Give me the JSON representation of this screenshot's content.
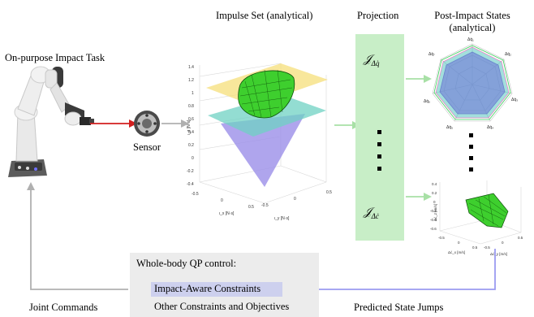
{
  "labels": {
    "task": "On-purpose Impact Task",
    "sensor": "Sensor",
    "impulse_set": "Impulse Set (analytical)",
    "projection": "Projection",
    "post_impact_line1": "Post-Impact States",
    "post_impact_line2": "(analytical)",
    "joint_commands": "Joint Commands",
    "predicted_state_jumps": "Predicted State Jumps"
  },
  "qp_control": {
    "title": "Whole-body QP control:",
    "item_highlighted": "Impact-Aware Constraints",
    "item_other": "Other Constraints and Objectives"
  },
  "projection_box": {
    "top_symbol": "𝒥",
    "top_subscript": "Δq̇",
    "bottom_symbol": "𝒥",
    "bottom_subscript": "Δċ"
  },
  "impulse_plot": {
    "z_axis_label": "ι_z [N·s]",
    "x_axis_label": "ι_x [N·s]",
    "y_axis_label": "ι_y [N·s]",
    "z_ticks": [
      "1.4",
      "1.2",
      "1",
      "0.8",
      "0.6",
      "0.4",
      "0.2",
      "0",
      "-0.2",
      "-0.4"
    ],
    "x_ticks": [
      "-0.5",
      "0",
      "0.5"
    ],
    "y_ticks": [
      "0.5",
      "0",
      "-0.5"
    ]
  },
  "radar_plot": {
    "axes": [
      "Δq̇₁",
      "Δq̇₂",
      "Δq̇₃",
      "Δq̇₄",
      "Δq̇₅",
      "Δq̇₆",
      "Δq̇₇"
    ]
  },
  "velocity_plot": {
    "z_axis_label": "Δċ_z [m/s]",
    "x_axis_label": "Δċ_x [m/s]",
    "y_axis_label": "Δċ_y [m/s]",
    "z_ticks": [
      "0.4",
      "0.2",
      "0",
      "-0.2",
      "-0.4",
      "-0.6"
    ],
    "x_ticks": [
      "-0.5",
      "0",
      "0.5"
    ],
    "y_ticks": [
      "0.5",
      "0",
      "-0.5"
    ]
  },
  "colors": {
    "arrow_gray": "#b0b0b0",
    "arrow_red": "#d21f1f",
    "arrow_green": "#a8e0a6",
    "arrow_purple": "#9b9bf0",
    "projection_fill": "#c8eec7",
    "qp_fill": "#ececec",
    "highlight_fill": "#cdd0ee",
    "green_surface": "#3ecf2e",
    "cone_purple": "#9b8fe8",
    "plane_yellow": "#f6df7a",
    "plane_teal": "#6fd2c3"
  }
}
